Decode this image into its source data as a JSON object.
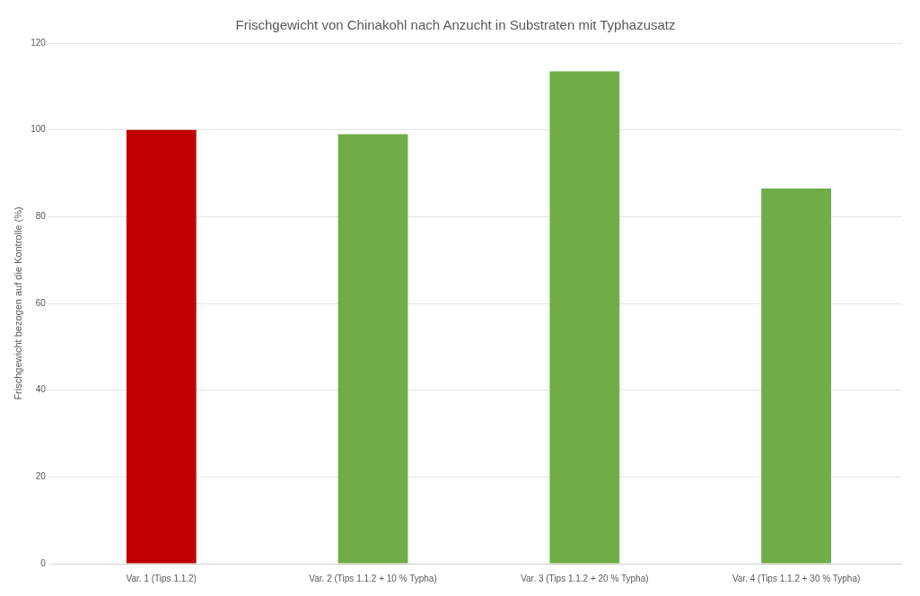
{
  "chart_data": {
    "type": "bar",
    "title": "Frischgewicht von Chinakohl nach Anzucht in Substraten mit Typhazusatz",
    "ylabel": "Frischgewicht bezogen auf die Kontrolle (%)",
    "categories": [
      "Var. 1 (Tips 1.1.2)",
      "Var. 2 (Tips 1.1.2 + 10 % Typha)",
      "Var. 3 (Tips 1.1.2 + 20 % Typha)",
      "Var. 4 (Tips 1.1.2 + 30 % Typha)"
    ],
    "values": [
      100,
      99,
      113.5,
      86.5
    ],
    "colors": [
      "#c00000",
      "#70ad47",
      "#70ad47",
      "#70ad47"
    ],
    "ylim": [
      0,
      120
    ],
    "yticks": [
      0,
      20,
      40,
      60,
      80,
      100,
      120
    ],
    "grid": "y"
  }
}
